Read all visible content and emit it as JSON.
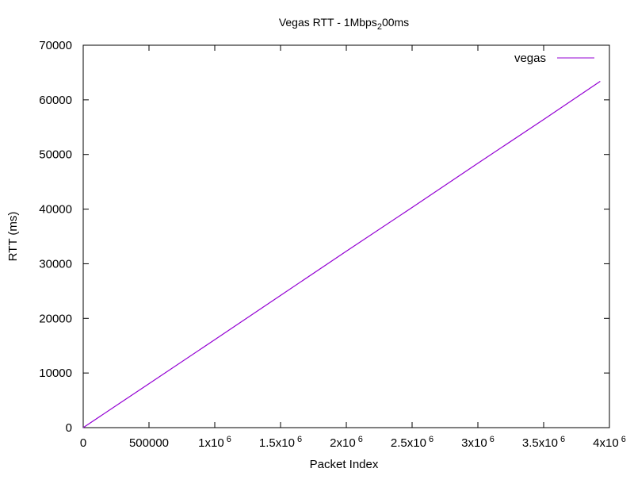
{
  "chart_data": {
    "type": "line",
    "title": {
      "main": "Vegas RTT - 1Mbps",
      "sub": "2",
      "tail": "00ms"
    },
    "xlabel": "Packet Index",
    "ylabel": "RTT (ms)",
    "xlim": [
      0,
      4000000
    ],
    "ylim": [
      0,
      70000
    ],
    "grid": false,
    "legend_position": "top-right",
    "x_ticks": [
      {
        "value": 0,
        "base": "0",
        "exp": ""
      },
      {
        "value": 500000,
        "base": "500000",
        "exp": ""
      },
      {
        "value": 1000000,
        "base": "1x10",
        "exp": "6"
      },
      {
        "value": 1500000,
        "base": "1.5x10",
        "exp": "6"
      },
      {
        "value": 2000000,
        "base": "2x10",
        "exp": "6"
      },
      {
        "value": 2500000,
        "base": "2.5x10",
        "exp": "6"
      },
      {
        "value": 3000000,
        "base": "3x10",
        "exp": "6"
      },
      {
        "value": 3500000,
        "base": "3.5x10",
        "exp": "6"
      },
      {
        "value": 4000000,
        "base": "4x10",
        "exp": "6"
      }
    ],
    "y_ticks": [
      0,
      10000,
      20000,
      30000,
      40000,
      50000,
      60000,
      70000
    ],
    "series": [
      {
        "name": "vegas",
        "color": "#9400d3",
        "x": [
          0,
          500000,
          1000000,
          1500000,
          2000000,
          2500000,
          3000000,
          3500000,
          3930000
        ],
        "y": [
          0,
          8050,
          16100,
          24200,
          32300,
          40300,
          48400,
          56400,
          63400
        ]
      }
    ]
  }
}
